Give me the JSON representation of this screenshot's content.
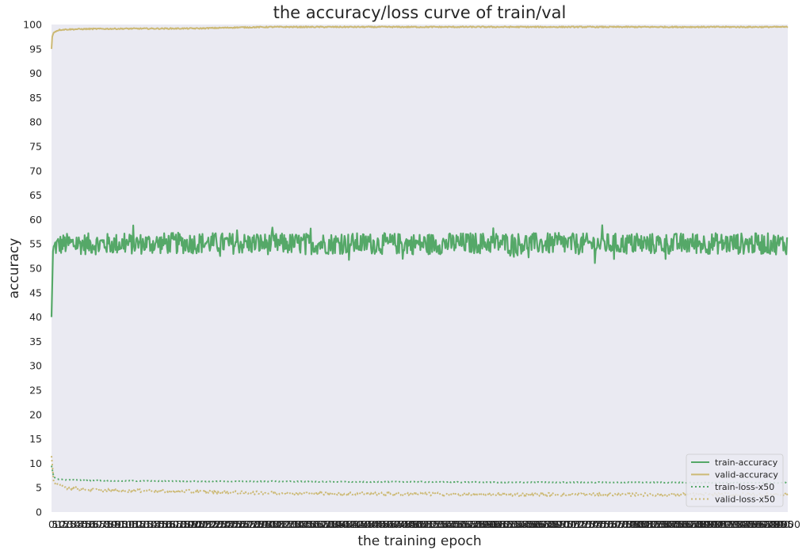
{
  "chart_data": {
    "type": "line",
    "title": "the accuracy/loss curve of train/val",
    "xlabel": "the training epoch",
    "ylabel": "accuracy",
    "xlim": [
      0,
      1000
    ],
    "ylim": [
      0,
      100
    ],
    "y_ticks": [
      "0",
      "5",
      "10",
      "15",
      "20",
      "25",
      "30",
      "35",
      "40",
      "45",
      "50",
      "55",
      "60",
      "65",
      "70",
      "75",
      "80",
      "85",
      "90",
      "95",
      "100"
    ],
    "grid": false,
    "legend_position": "lower-right",
    "series": [
      {
        "name": "train-accuracy",
        "color": "#55a868",
        "style": "solid",
        "noise": 2.2,
        "x": [
          0,
          2,
          5,
          10,
          20,
          50,
          100,
          200,
          300,
          400,
          500,
          600,
          700,
          800,
          900,
          1000
        ],
        "y": [
          40,
          53.5,
          54.5,
          54.8,
          55,
          55,
          55,
          55.2,
          55,
          55.1,
          55,
          55.2,
          55,
          55,
          55.1,
          55
        ]
      },
      {
        "name": "valid-accuracy",
        "color": "#ccb974",
        "style": "solid",
        "noise": 0.12,
        "x": [
          0,
          1,
          3,
          10,
          20,
          50,
          100,
          200,
          250,
          300,
          400,
          500,
          600,
          700,
          800,
          900,
          1000
        ],
        "y": [
          95,
          97.5,
          98.4,
          98.9,
          99,
          99.1,
          99.15,
          99.2,
          99.4,
          99.5,
          99.5,
          99.5,
          99.5,
          99.5,
          99.5,
          99.5,
          99.5
        ]
      },
      {
        "name": "train-loss-x50",
        "color": "#55a868",
        "style": "dotted",
        "noise": 0.08,
        "x": [
          0,
          3,
          10,
          20,
          50,
          100,
          200,
          300,
          400,
          500,
          600,
          700,
          800,
          900,
          1000
        ],
        "y": [
          9.5,
          7.2,
          6.7,
          6.6,
          6.5,
          6.4,
          6.3,
          6.3,
          6.2,
          6.2,
          6.1,
          6.1,
          6.1,
          6.0,
          6.0
        ]
      },
      {
        "name": "valid-loss-x50",
        "color": "#ccb974",
        "style": "dotted",
        "noise": 0.35,
        "x": [
          0,
          3,
          10,
          20,
          50,
          100,
          200,
          250,
          300,
          400,
          500,
          600,
          700,
          800,
          900,
          1000
        ],
        "y": [
          11.5,
          6.2,
          5.4,
          5.0,
          4.6,
          4.4,
          4.2,
          4.0,
          3.9,
          3.8,
          3.7,
          3.6,
          3.6,
          3.6,
          3.6,
          3.6
        ]
      }
    ]
  }
}
